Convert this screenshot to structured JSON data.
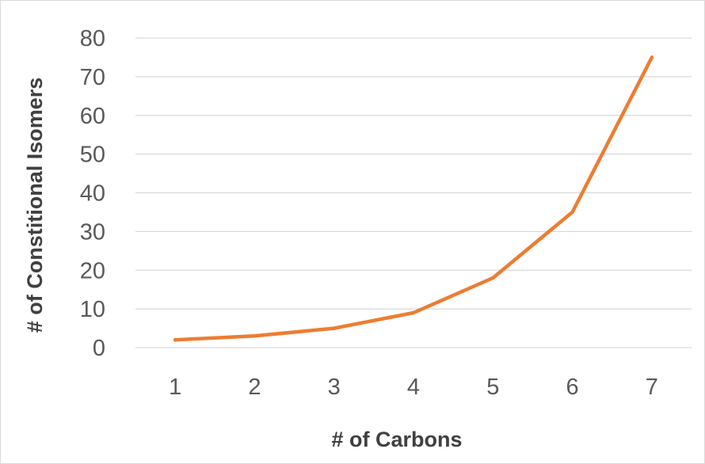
{
  "chart_data": {
    "type": "line",
    "categories": [
      "1",
      "2",
      "3",
      "4",
      "5",
      "6",
      "7"
    ],
    "x": [
      1,
      2,
      3,
      4,
      5,
      6,
      7
    ],
    "series": [
      {
        "values": [
          2,
          3,
          5,
          9,
          18,
          35,
          75
        ],
        "color": "#ED7D31"
      }
    ],
    "title": "",
    "xlabel": "# of Carbons",
    "ylabel": "# of Constitional Isomers",
    "ylim": [
      0,
      80
    ],
    "yticks": [
      0,
      10,
      20,
      30,
      40,
      50,
      60,
      70,
      80
    ],
    "grid": true,
    "legend": "none"
  },
  "colors": {
    "gridline": "#D9D9D9",
    "tick_text": "#595959",
    "axis_title_text": "#404040",
    "border": "#D9D9D9"
  }
}
